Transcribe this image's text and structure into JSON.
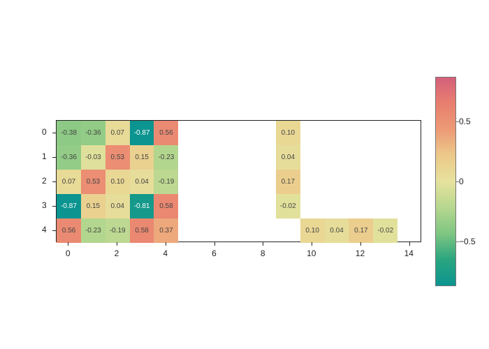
{
  "chart_data": {
    "type": "heatmap",
    "title": "",
    "xlabel": "",
    "ylabel": "",
    "x_ticks": [
      0,
      2,
      4,
      6,
      8,
      10,
      12,
      14
    ],
    "y_ticks": [
      0,
      1,
      2,
      3,
      4
    ],
    "xlim": [
      -0.5,
      14.5
    ],
    "ylim": [
      4.5,
      -0.5
    ],
    "colormap": [
      "#0b9490",
      "#2ba57f",
      "#7fc682",
      "#b6d78f",
      "#e6e29d",
      "#ecc98a",
      "#ed9a76",
      "#e87f6f",
      "#d4607a"
    ],
    "vmin": -0.87,
    "vmax": 0.87,
    "colorbar_ticks": [
      {
        "label": "0.5",
        "value": 0.5
      },
      {
        "label": "0",
        "value": 0
      },
      {
        "label": "−0.5",
        "value": -0.5
      }
    ],
    "cells": [
      {
        "row": 0,
        "col": 0,
        "value": -0.38,
        "label": "-0.38"
      },
      {
        "row": 0,
        "col": 1,
        "value": -0.36,
        "label": "-0.36"
      },
      {
        "row": 0,
        "col": 2,
        "value": 0.07,
        "label": "0.07"
      },
      {
        "row": 0,
        "col": 3,
        "value": -0.87,
        "label": "-0.87"
      },
      {
        "row": 0,
        "col": 4,
        "value": 0.56,
        "label": "0.56"
      },
      {
        "row": 1,
        "col": 0,
        "value": -0.36,
        "label": "-0.36"
      },
      {
        "row": 1,
        "col": 1,
        "value": -0.03,
        "label": "-0.03"
      },
      {
        "row": 1,
        "col": 2,
        "value": 0.53,
        "label": "0.53"
      },
      {
        "row": 1,
        "col": 3,
        "value": 0.15,
        "label": "0.15"
      },
      {
        "row": 1,
        "col": 4,
        "value": -0.23,
        "label": "-0.23"
      },
      {
        "row": 2,
        "col": 0,
        "value": 0.07,
        "label": "0.07"
      },
      {
        "row": 2,
        "col": 1,
        "value": 0.53,
        "label": "0.53"
      },
      {
        "row": 2,
        "col": 2,
        "value": 0.1,
        "label": "0.10"
      },
      {
        "row": 2,
        "col": 3,
        "value": 0.04,
        "label": "0.04"
      },
      {
        "row": 2,
        "col": 4,
        "value": -0.19,
        "label": "-0.19"
      },
      {
        "row": 3,
        "col": 0,
        "value": -0.87,
        "label": "-0.87"
      },
      {
        "row": 3,
        "col": 1,
        "value": 0.15,
        "label": "0.15"
      },
      {
        "row": 3,
        "col": 2,
        "value": 0.04,
        "label": "0.04"
      },
      {
        "row": 3,
        "col": 3,
        "value": -0.81,
        "label": "-0.81"
      },
      {
        "row": 3,
        "col": 4,
        "value": 0.58,
        "label": "0.58"
      },
      {
        "row": 4,
        "col": 0,
        "value": 0.56,
        "label": "0.56"
      },
      {
        "row": 4,
        "col": 1,
        "value": -0.23,
        "label": "-0.23"
      },
      {
        "row": 4,
        "col": 2,
        "value": -0.19,
        "label": "-0.19"
      },
      {
        "row": 4,
        "col": 3,
        "value": 0.58,
        "label": "0.58"
      },
      {
        "row": 4,
        "col": 4,
        "value": 0.37,
        "label": "0.37"
      },
      {
        "row": 0,
        "col": 9,
        "value": 0.1,
        "label": "0.10"
      },
      {
        "row": 1,
        "col": 9,
        "value": 0.04,
        "label": "0.04"
      },
      {
        "row": 2,
        "col": 9,
        "value": 0.17,
        "label": "0.17"
      },
      {
        "row": 3,
        "col": 9,
        "value": -0.02,
        "label": "-0.02"
      },
      {
        "row": 4,
        "col": 10,
        "value": 0.1,
        "label": "0.10"
      },
      {
        "row": 4,
        "col": 11,
        "value": 0.04,
        "label": "0.04"
      },
      {
        "row": 4,
        "col": 12,
        "value": 0.17,
        "label": "0.17"
      },
      {
        "row": 4,
        "col": 13,
        "value": -0.02,
        "label": "-0.02"
      }
    ]
  }
}
